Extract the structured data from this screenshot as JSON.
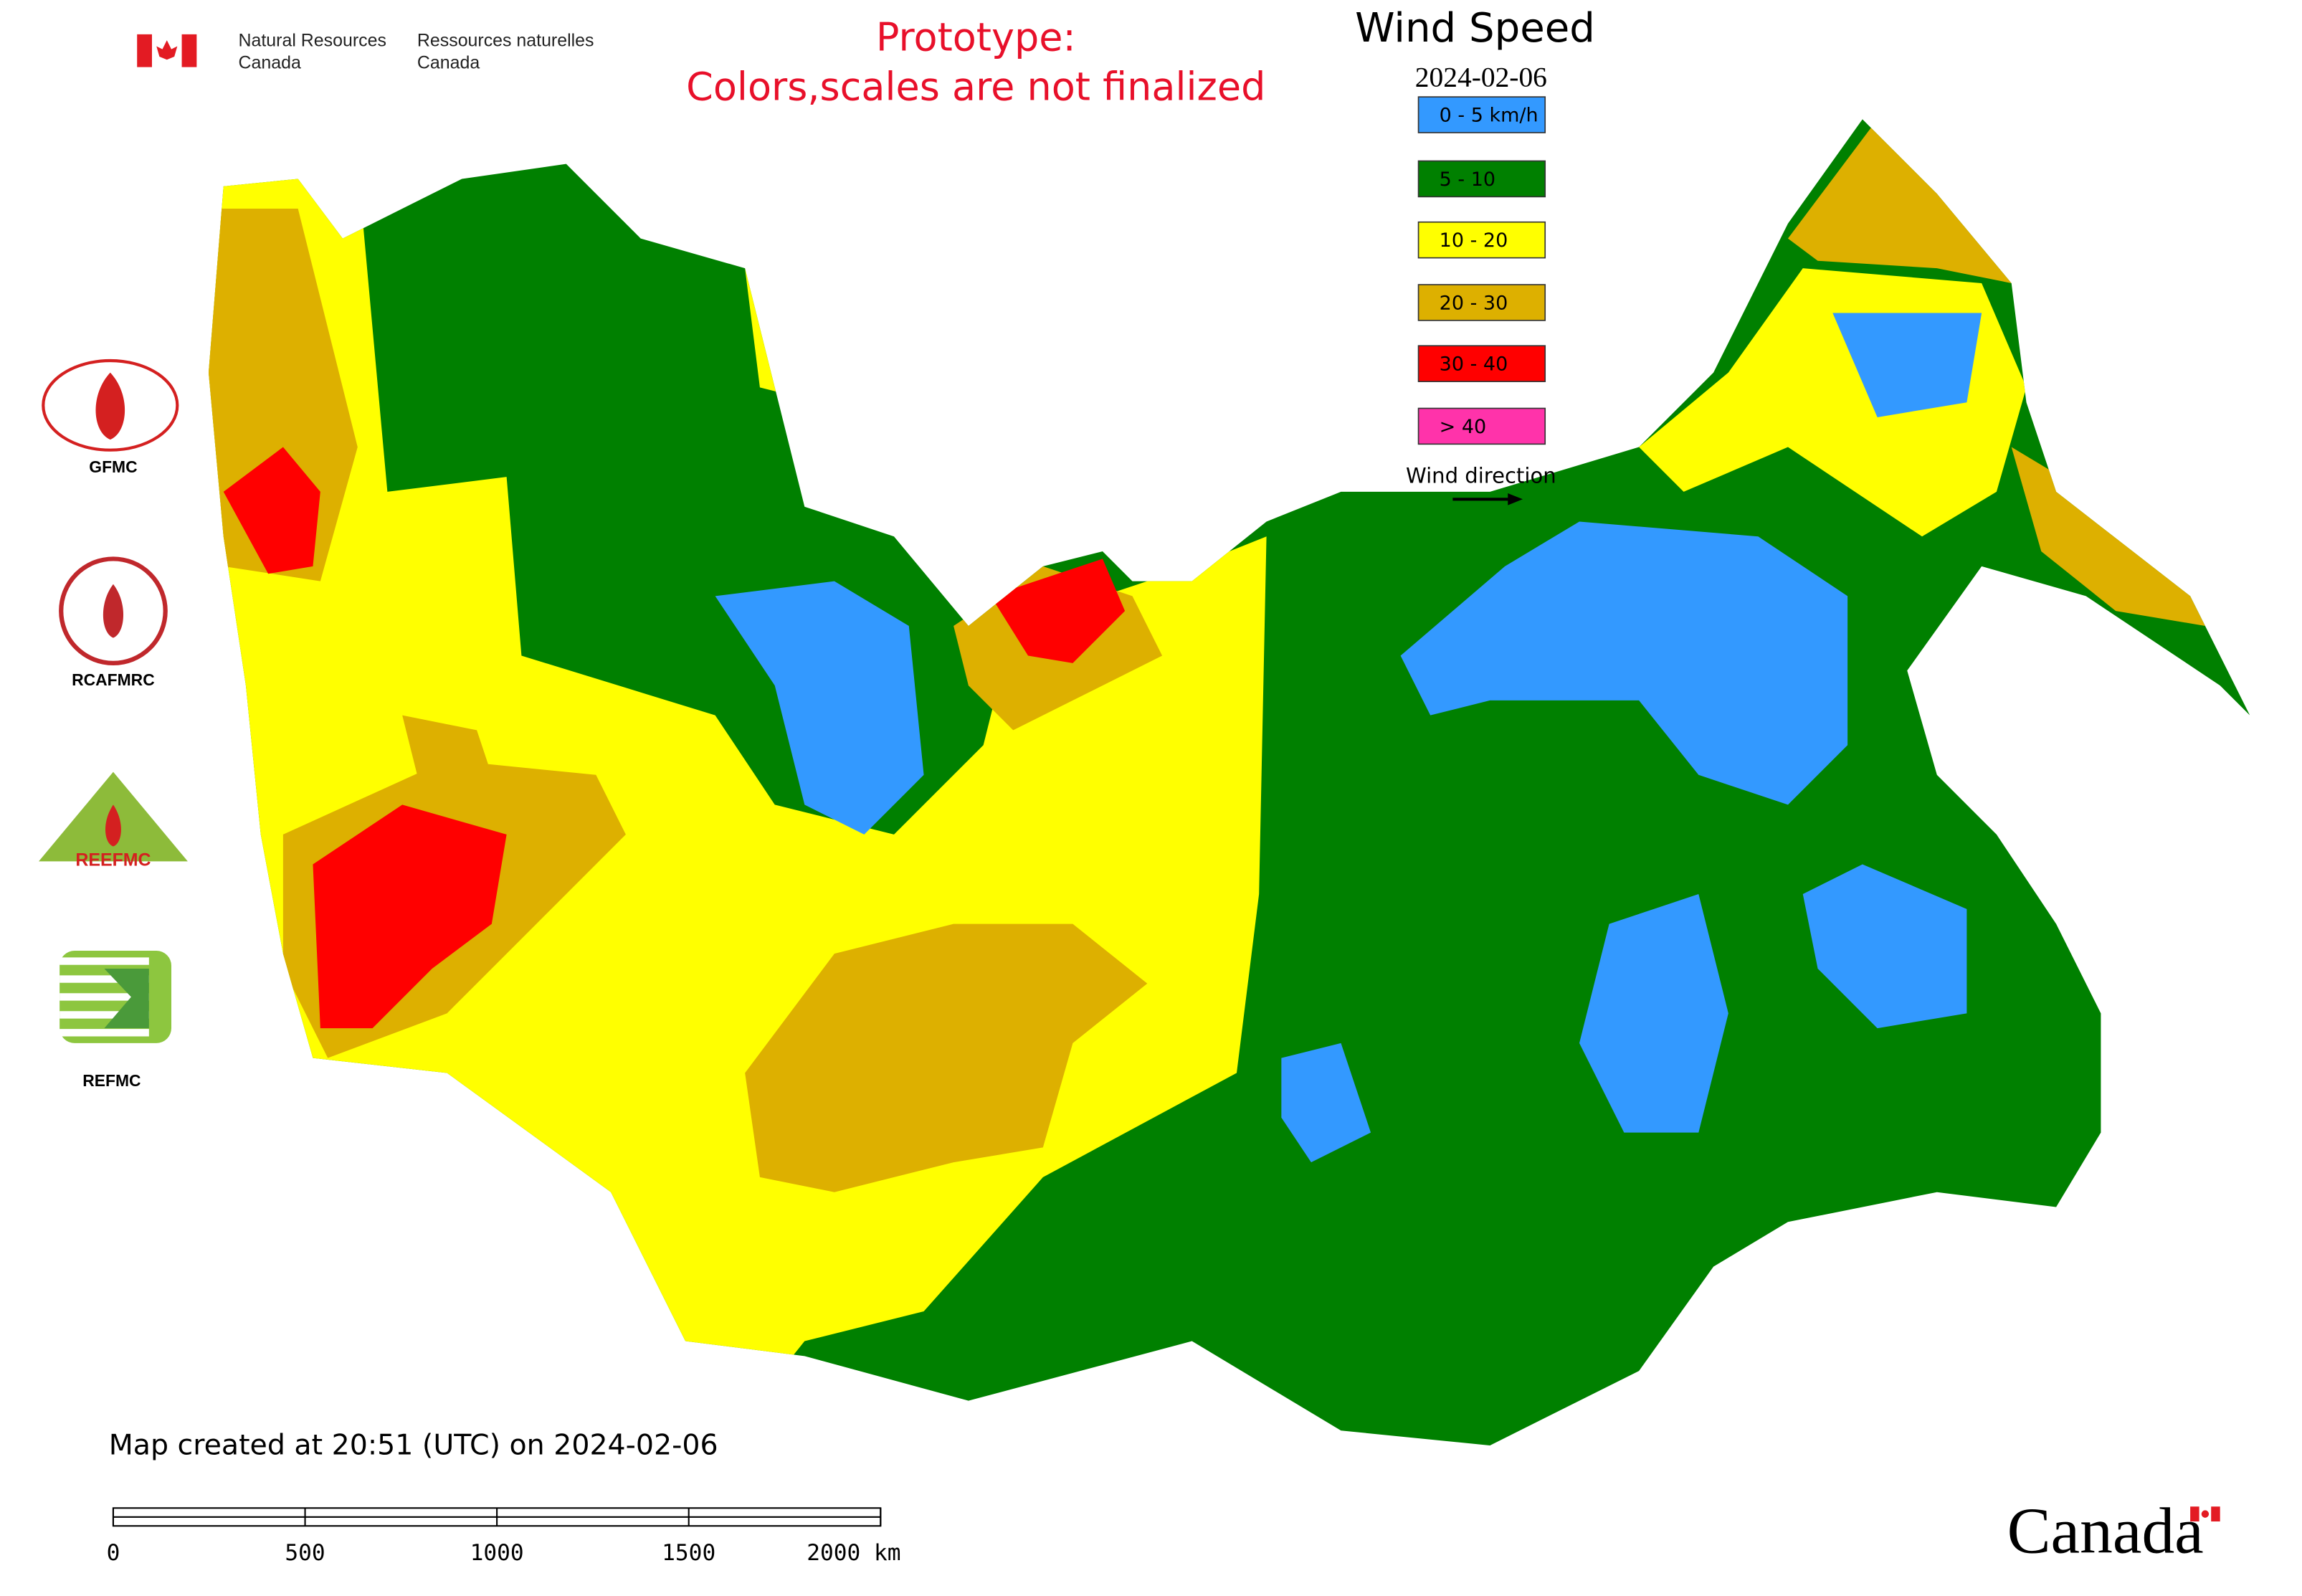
{
  "header": {
    "agency_en_1": "Natural Resources",
    "agency_en_2": "Canada",
    "agency_fr_1": "Ressources naturelles",
    "agency_fr_2": "Canada"
  },
  "notice": [
    "Prototype:",
    "Colors,scales are not finalized"
  ],
  "legend": {
    "title": "Wind Speed",
    "date": "2024-02-06",
    "items": [
      {
        "label": "0 - 5 km/h",
        "color": "#3399ff"
      },
      {
        "label": "5 - 10",
        "color": "#008000"
      },
      {
        "label": "10 - 20",
        "color": "#ffff00"
      },
      {
        "label": "20 - 30",
        "color": "#ddb000"
      },
      {
        "label": "30 - 40",
        "color": "#ff0000"
      },
      {
        "label": "> 40",
        "color": "#ff33aa"
      }
    ],
    "wind_direction": "Wind direction"
  },
  "logos": {
    "gfmc": "GFMC",
    "rcafmrc": "RCAFMRC",
    "reefmc": "REEFMC",
    "refmc": "REFMC"
  },
  "footer": {
    "created": "Map created at 20:51 (UTC) on 2024-02-06",
    "scale_labels": [
      "0",
      "500",
      "1000",
      "1500",
      "2000 km"
    ],
    "wordmark": "Canada"
  }
}
